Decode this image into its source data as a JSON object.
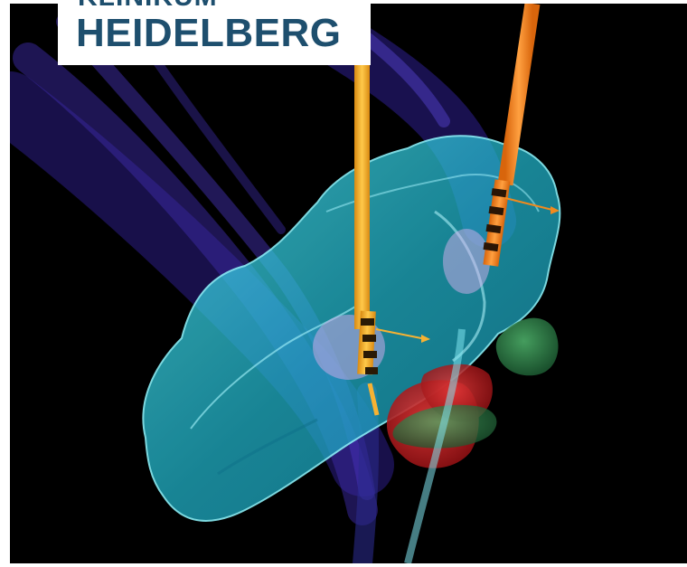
{
  "logo": {
    "line1": "KLINIKUM",
    "line2": "HEIDELBERG"
  },
  "colors": {
    "background": "#000000",
    "brand_text": "#1e4f6e",
    "brain_volume": "#29c6d8",
    "fiber_tracts": "#3a2a9a",
    "electrode_left": "#f6b233",
    "electrode_right": "#f08a1e",
    "target_red": "#c81e1e",
    "target_green": "#2f8a4a"
  }
}
